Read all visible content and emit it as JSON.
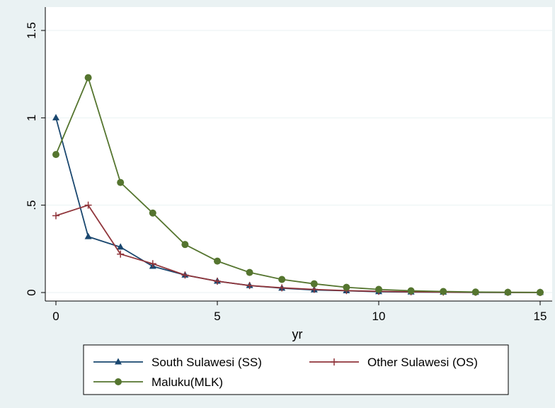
{
  "chart_data": {
    "type": "line",
    "title": "",
    "xlabel": "yr",
    "ylabel": "",
    "xlim": [
      0,
      15
    ],
    "ylim": [
      0,
      1.5
    ],
    "x_ticks": [
      0,
      5,
      10,
      15
    ],
    "x_tick_labels": [
      "0",
      "5",
      "10",
      "15"
    ],
    "y_ticks": [
      0,
      0.5,
      1,
      1.5
    ],
    "y_tick_labels": [
      "0",
      ".5",
      "1",
      "1.5"
    ],
    "grid": true,
    "legend_position": "bottom",
    "x": [
      0,
      1,
      2,
      3,
      4,
      5,
      6,
      7,
      8,
      9,
      10,
      11,
      12,
      13,
      14,
      15
    ],
    "series": [
      {
        "name": "South Sulawesi (SS)",
        "color": "#1a476f",
        "marker": "triangle",
        "values": [
          1.0,
          0.32,
          0.26,
          0.15,
          0.1,
          0.065,
          0.04,
          0.025,
          0.015,
          0.01,
          0.005,
          0.003,
          0.002,
          0.001,
          0.0005,
          0.0003
        ]
      },
      {
        "name": "Other Sulawesi (OS)",
        "color": "#90353b",
        "marker": "plus",
        "values": [
          0.44,
          0.5,
          0.22,
          0.165,
          0.1,
          0.065,
          0.04,
          0.027,
          0.018,
          0.011,
          0.007,
          0.004,
          0.0025,
          0.0015,
          0.0008,
          0.0005
        ]
      },
      {
        "name": "Maluku(MLK)",
        "color": "#55752f",
        "marker": "circle",
        "values": [
          0.79,
          1.23,
          0.63,
          0.455,
          0.275,
          0.18,
          0.115,
          0.075,
          0.05,
          0.03,
          0.018,
          0.01,
          0.006,
          0.003,
          0.0015,
          0.0008
        ]
      }
    ]
  }
}
